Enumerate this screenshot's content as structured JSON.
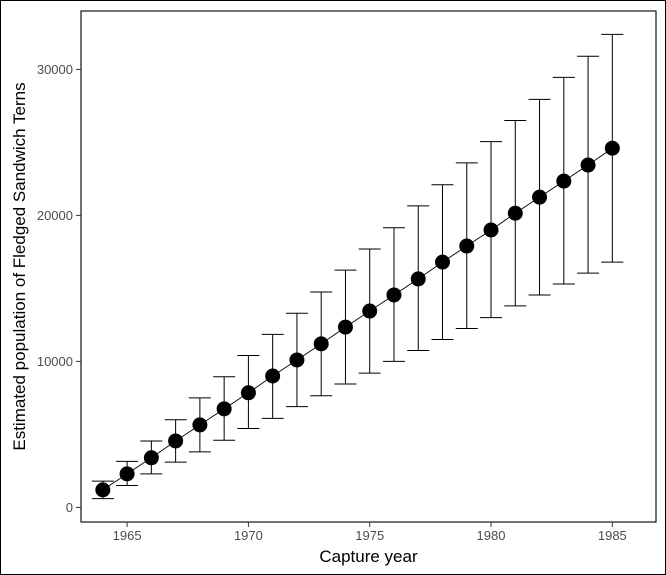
{
  "chart_data": {
    "type": "scatter",
    "title": "",
    "xlabel": "Capture year",
    "ylabel": "Estimated population of Fledged Sandwich Terns",
    "xlim": [
      1963.1,
      1986.8
    ],
    "ylim": [
      -1000,
      34000
    ],
    "x_ticks": [
      1965,
      1970,
      1975,
      1980,
      1985
    ],
    "y_ticks": [
      0,
      10000,
      20000,
      30000
    ],
    "y_tick_labels": [
      "0",
      "10000",
      "20000",
      "30000"
    ],
    "grid": false,
    "legend": "none",
    "connecting_line": true,
    "error_bars": true,
    "series": [
      {
        "x": [
          1964,
          1965,
          1966,
          1967,
          1968,
          1969,
          1970,
          1971,
          1972,
          1973,
          1974,
          1975,
          1976,
          1977,
          1978,
          1979,
          1980,
          1981,
          1982,
          1983,
          1984,
          1985
        ],
        "y": [
          1200,
          2300,
          3400,
          4550,
          5650,
          6750,
          7850,
          9000,
          10100,
          11200,
          12350,
          13450,
          14550,
          15650,
          16800,
          17900,
          19000,
          20150,
          21250,
          22350,
          23450,
          24600
        ],
        "lower": [
          600,
          1500,
          2300,
          3100,
          3800,
          4600,
          5400,
          6100,
          6900,
          7650,
          8450,
          9200,
          10000,
          10750,
          11500,
          12250,
          13000,
          13800,
          14550,
          15300,
          16050,
          16800
        ],
        "upper": [
          1800,
          3150,
          4550,
          6000,
          7500,
          8950,
          10400,
          11850,
          13300,
          14750,
          16250,
          17700,
          19150,
          20650,
          22100,
          23600,
          25050,
          26500,
          27950,
          29450,
          30900,
          32400
        ]
      }
    ]
  }
}
